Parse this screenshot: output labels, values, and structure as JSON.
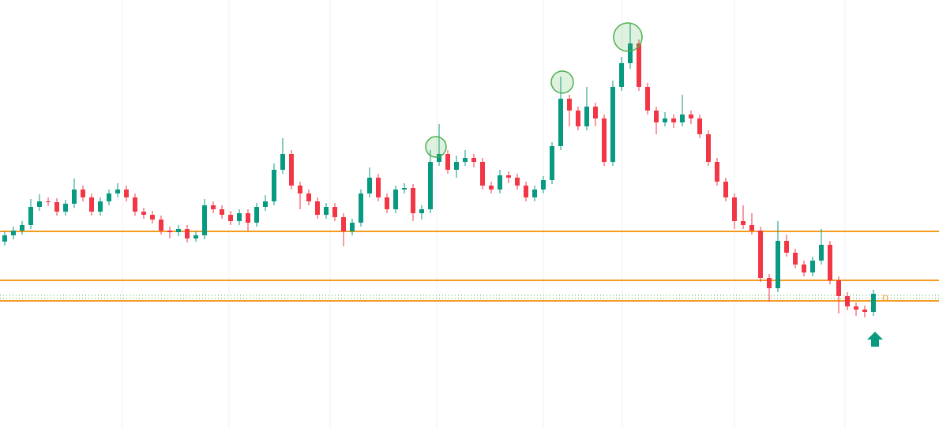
{
  "chart_data": {
    "type": "candlestick",
    "ylim": [
      0,
      542
    ],
    "up_color": "#089981",
    "down_color": "#f23645",
    "open": [
      236,
      244,
      250,
      257,
      280,
      287,
      286,
      274,
      284,
      302,
      292,
      274,
      287,
      297,
      302,
      292,
      274,
      270,
      264,
      250,
      248,
      252,
      240,
      244,
      282,
      277,
      270,
      262,
      272,
      260,
      280,
      287,
      327,
      347,
      307,
      297,
      287,
      270,
      280,
      267,
      249,
      260,
      297,
      317,
      292,
      277,
      302,
      304,
      272,
      277,
      337,
      347,
      327,
      337,
      342,
      337,
      307,
      302,
      320,
      317,
      307,
      292,
      302,
      314,
      357,
      417,
      402,
      382,
      407,
      392,
      337,
      432,
      462,
      487,
      432,
      402,
      387,
      392,
      387,
      397,
      392,
      372,
      337,
      312,
      292,
      262,
      257,
      250,
      190,
      177,
      237,
      222,
      207,
      197,
      212,
      232,
      187,
      167,
      154,
      150,
      147
    ],
    "high": [
      249,
      255,
      262,
      290,
      296,
      292,
      291,
      289,
      316,
      307,
      297,
      292,
      302,
      310,
      307,
      297,
      279,
      275,
      269,
      255,
      257,
      257,
      249,
      290,
      287,
      282,
      275,
      277,
      277,
      285,
      295,
      335,
      367,
      352,
      312,
      302,
      292,
      285,
      285,
      272,
      265,
      302,
      330,
      322,
      297,
      307,
      310,
      309,
      282,
      352,
      385,
      352,
      345,
      352,
      347,
      342,
      312,
      327,
      325,
      322,
      312,
      307,
      319,
      362,
      445,
      422,
      407,
      432,
      412,
      397,
      440,
      470,
      512,
      492,
      437,
      407,
      400,
      397,
      422,
      402,
      397,
      377,
      342,
      317,
      297,
      282,
      272,
      255,
      195,
      262,
      245,
      227,
      212,
      217,
      252,
      237,
      192,
      172,
      159,
      155,
      175
    ],
    "low": [
      231,
      239,
      245,
      252,
      275,
      281,
      269,
      269,
      279,
      287,
      269,
      269,
      282,
      292,
      287,
      269,
      265,
      259,
      245,
      240,
      243,
      235,
      236,
      239,
      272,
      265,
      257,
      257,
      250,
      255,
      275,
      282,
      322,
      302,
      277,
      282,
      265,
      265,
      262,
      230,
      244,
      255,
      292,
      287,
      272,
      272,
      297,
      262,
      264,
      272,
      332,
      322,
      317,
      332,
      330,
      302,
      297,
      297,
      310,
      302,
      287,
      287,
      297,
      309,
      352,
      382,
      377,
      377,
      382,
      332,
      332,
      427,
      455,
      427,
      397,
      372,
      382,
      380,
      382,
      385,
      367,
      332,
      307,
      287,
      252,
      252,
      245,
      185,
      160,
      172,
      217,
      202,
      192,
      192,
      207,
      182,
      145,
      149,
      142,
      140,
      142
    ],
    "close": [
      244,
      250,
      257,
      280,
      287,
      286,
      274,
      284,
      302,
      292,
      274,
      287,
      297,
      302,
      292,
      274,
      270,
      264,
      250,
      248,
      252,
      240,
      244,
      282,
      277,
      270,
      262,
      272,
      260,
      280,
      287,
      327,
      347,
      307,
      297,
      287,
      270,
      280,
      267,
      249,
      260,
      297,
      317,
      292,
      277,
      302,
      304,
      272,
      277,
      337,
      347,
      327,
      337,
      342,
      337,
      307,
      302,
      320,
      317,
      307,
      292,
      302,
      314,
      357,
      417,
      402,
      382,
      407,
      392,
      337,
      432,
      462,
      487,
      432,
      402,
      387,
      392,
      387,
      397,
      392,
      372,
      337,
      312,
      292,
      262,
      257,
      250,
      190,
      177,
      237,
      222,
      207,
      197,
      212,
      232,
      187,
      167,
      154,
      150,
      147,
      170
    ],
    "levels": [
      249,
      187,
      161
    ],
    "level_color": "#f59b22",
    "dotted_levels": [
      168,
      164
    ],
    "dotted_color": "#4caf50",
    "level_label": "D"
  }
}
